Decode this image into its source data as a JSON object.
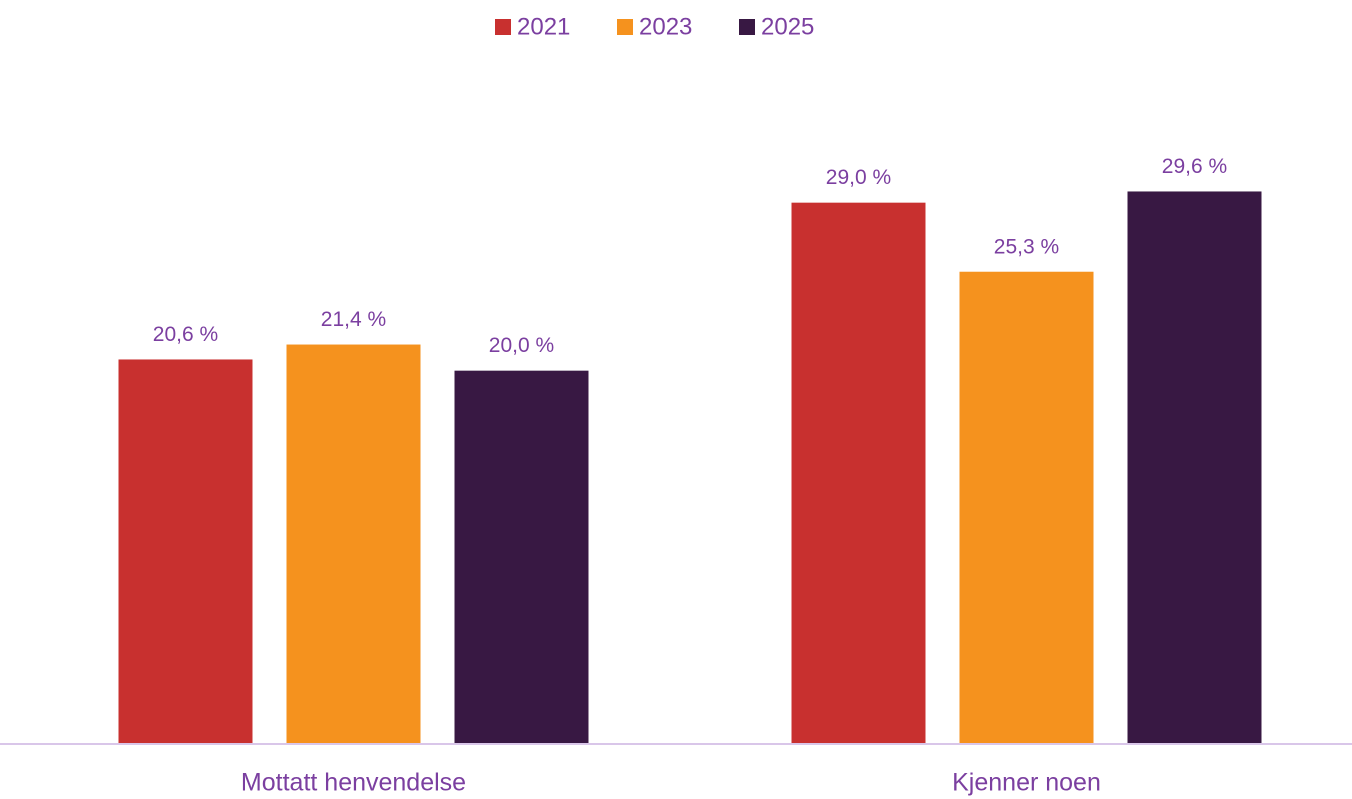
{
  "chart_data": {
    "type": "bar",
    "categories": [
      "Mottatt henvendelse",
      "Kjenner noen"
    ],
    "series": [
      {
        "name": "2021",
        "color": "#c8302f",
        "values": [
          20.6,
          29.0
        ],
        "value_labels": [
          "20,6 %",
          "29,0 %"
        ]
      },
      {
        "name": "2023",
        "color": "#f5921e",
        "values": [
          21.4,
          25.3
        ],
        "value_labels": [
          "21,4 %",
          "25,3 %"
        ]
      },
      {
        "name": "2025",
        "color": "#381843",
        "values": [
          20.0,
          29.6
        ],
        "value_labels": [
          "20,0 %",
          "29,6 %"
        ]
      }
    ],
    "ylim": [
      0,
      30
    ],
    "legend": "top"
  }
}
